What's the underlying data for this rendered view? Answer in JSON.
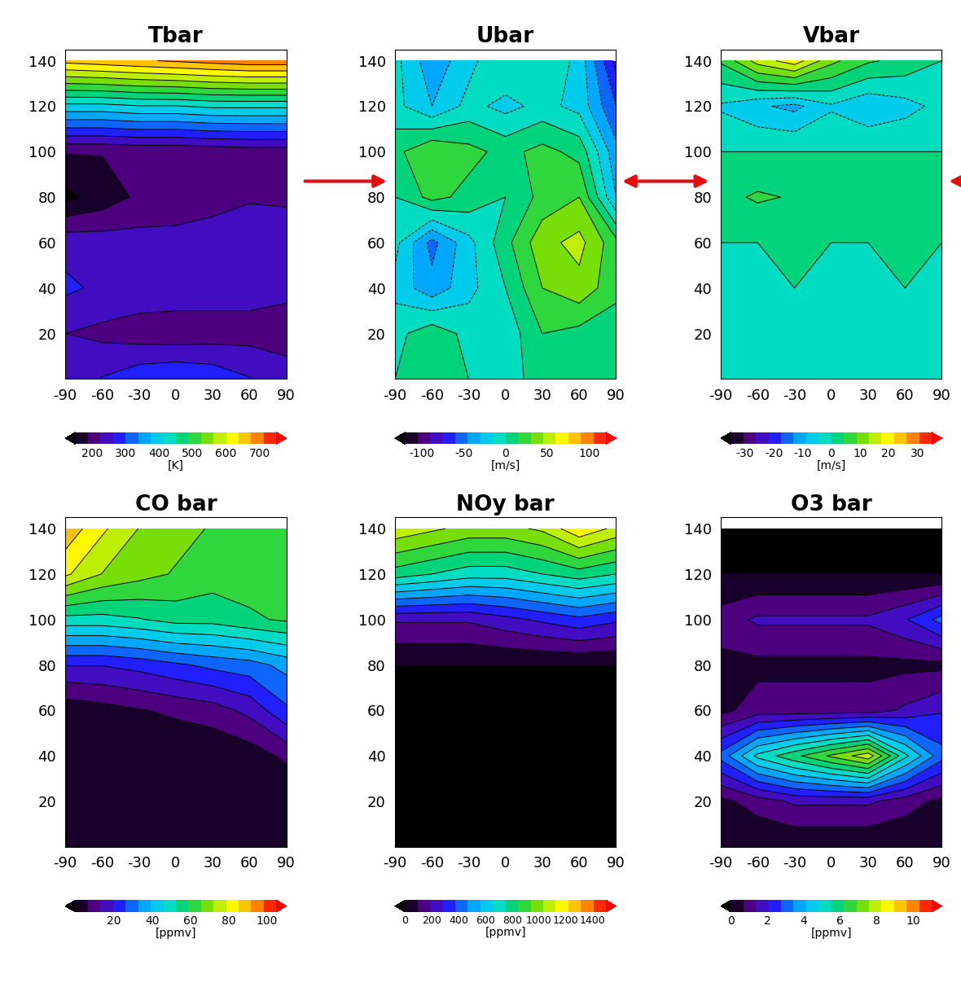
{
  "chart_data": [
    {
      "type": "contour",
      "title": "Tbar",
      "x": [
        -90,
        -60,
        -30,
        0,
        30,
        60,
        90
      ],
      "y": [
        0,
        20,
        40,
        60,
        80,
        100,
        120,
        140
      ],
      "cells": [
        [
          240,
          265,
          290,
          300,
          290,
          265,
          245
        ],
        [
          225,
          215,
          205,
          200,
          205,
          210,
          205
        ],
        [
          270,
          255,
          250,
          250,
          245,
          240,
          235
        ],
        [
          250,
          245,
          240,
          240,
          245,
          255,
          260
        ],
        [
          140,
          165,
          195,
          200,
          210,
          220,
          215
        ],
        [
          190,
          190,
          195,
          195,
          200,
          205,
          205
        ],
        [
          400,
          400,
          410,
          410,
          420,
          420,
          420
        ],
        [
          650,
          660,
          670,
          680,
          690,
          700,
          700
        ]
      ],
      "xlim": [
        -90,
        90
      ],
      "ylim": [
        0,
        145
      ],
      "xticks": [
        -90,
        -60,
        -30,
        0,
        30,
        60,
        90
      ],
      "yticks": [
        20,
        40,
        60,
        80,
        100,
        120,
        140
      ],
      "color_range": [
        150,
        750
      ],
      "color_ticks": [
        200,
        300,
        400,
        500,
        600,
        700
      ],
      "color_label": "[K]"
    },
    {
      "type": "contour",
      "title": "Ubar",
      "x": [
        -90,
        -60,
        -30,
        0,
        30,
        60,
        90
      ],
      "y": [
        0,
        20,
        40,
        60,
        80,
        100,
        120,
        140
      ],
      "cells": [
        [
          0,
          5,
          0,
          -5,
          5,
          5,
          0
        ],
        [
          -5,
          10,
          -5,
          -10,
          15,
          10,
          5
        ],
        [
          -20,
          -40,
          -20,
          0,
          30,
          40,
          20
        ],
        [
          -10,
          -50,
          -20,
          10,
          40,
          50,
          20
        ],
        [
          0,
          20,
          10,
          0,
          20,
          30,
          -30
        ],
        [
          10,
          30,
          20,
          10,
          20,
          10,
          -40
        ],
        [
          -10,
          -30,
          -10,
          -20,
          -10,
          -20,
          -60
        ],
        [
          -10,
          -40,
          -20,
          0,
          0,
          -20,
          -80
        ]
      ],
      "xlim": [
        -90,
        90
      ],
      "ylim": [
        0,
        145
      ],
      "xticks": [
        -90,
        -60,
        -30,
        0,
        30,
        60,
        90
      ],
      "yticks": [
        20,
        40,
        60,
        80,
        100,
        120,
        140
      ],
      "color_range": [
        -120,
        120
      ],
      "color_ticks": [
        -100,
        -50,
        0,
        50,
        100
      ],
      "color_label": "[m/s]"
    },
    {
      "type": "contour",
      "title": "Vbar",
      "x": [
        -90,
        -60,
        -30,
        0,
        30,
        60,
        90
      ],
      "y": [
        0,
        20,
        40,
        60,
        80,
        100,
        120,
        140
      ],
      "cells": [
        [
          0,
          0,
          0,
          0,
          0,
          0,
          0
        ],
        [
          0,
          0,
          0,
          0,
          0,
          0,
          0
        ],
        [
          0,
          0,
          0,
          0,
          0,
          0,
          0
        ],
        [
          0,
          0,
          1,
          0,
          0,
          1,
          0
        ],
        [
          3,
          5,
          4,
          3,
          4,
          4,
          3
        ],
        [
          0,
          0,
          0,
          0,
          0,
          0,
          0
        ],
        [
          -5,
          -8,
          -10,
          -5,
          -8,
          -6,
          -3
        ],
        [
          5,
          15,
          20,
          10,
          5,
          3,
          0
        ]
      ],
      "xlim": [
        -90,
        90
      ],
      "ylim": [
        0,
        145
      ],
      "xticks": [
        -90,
        -60,
        -30,
        0,
        30,
        60,
        90
      ],
      "yticks": [
        20,
        40,
        60,
        80,
        100,
        120,
        140
      ],
      "color_range": [
        -35,
        35
      ],
      "color_ticks": [
        -30,
        -20,
        -10,
        0,
        10,
        20,
        30
      ],
      "color_label": "[m/s]"
    },
    {
      "type": "contour",
      "title": "CO bar",
      "x": [
        -90,
        -60,
        -30,
        0,
        30,
        60,
        90
      ],
      "y": [
        0,
        20,
        40,
        60,
        80,
        100,
        120,
        140
      ],
      "cells": [
        [
          0.1,
          0.1,
          0.1,
          0.1,
          0.1,
          0.1,
          0.1
        ],
        [
          0.1,
          0.1,
          0.1,
          0.1,
          0.1,
          0.1,
          0.2
        ],
        [
          0.2,
          0.3,
          0.4,
          0.5,
          1,
          3,
          8
        ],
        [
          2,
          4,
          6,
          8,
          10,
          15,
          25
        ],
        [
          20,
          20,
          22,
          25,
          28,
          30,
          35
        ],
        [
          50,
          50,
          52,
          55,
          55,
          58,
          60
        ],
        [
          80,
          72,
          68,
          65,
          62,
          62,
          62
        ],
        [
          90,
          80,
          72,
          68,
          65,
          64,
          64
        ]
      ],
      "xlim": [
        -90,
        90
      ],
      "ylim": [
        0,
        145
      ],
      "xticks": [
        -90,
        -60,
        -30,
        0,
        30,
        60,
        90
      ],
      "yticks": [
        20,
        40,
        60,
        80,
        100,
        120,
        140
      ],
      "color_range": [
        0,
        105
      ],
      "color_ticks": [
        20,
        40,
        60,
        80,
        100
      ],
      "color_label": "[ppmv]"
    },
    {
      "type": "contour",
      "title": "NOy bar",
      "x": [
        -90,
        -60,
        -30,
        0,
        30,
        60,
        90
      ],
      "y": [
        0,
        20,
        40,
        60,
        80,
        100,
        120,
        140
      ],
      "cells": [
        [
          0,
          0,
          0,
          0,
          0,
          0,
          0
        ],
        [
          0,
          0,
          0,
          0,
          0,
          0,
          0
        ],
        [
          0,
          0,
          0,
          0,
          0,
          0,
          0
        ],
        [
          0,
          0,
          0,
          0,
          0,
          0,
          0
        ],
        [
          0,
          0,
          0,
          0,
          0,
          0,
          0
        ],
        [
          200,
          200,
          200,
          250,
          300,
          350,
          300
        ],
        [
          800,
          750,
          700,
          700,
          750,
          800,
          750
        ],
        [
          1100,
          1050,
          1000,
          1000,
          1050,
          1200,
          1100
        ]
      ],
      "xlim": [
        -90,
        90
      ],
      "ylim": [
        0,
        145
      ],
      "xticks": [
        -90,
        -60,
        -30,
        0,
        30,
        60,
        90
      ],
      "yticks": [
        20,
        40,
        60,
        80,
        100,
        120,
        140
      ],
      "color_range": [
        0,
        1500
      ],
      "color_ticks": [
        0,
        200,
        400,
        600,
        800,
        1000,
        1200,
        1400
      ],
      "color_label": "[ppmv]"
    },
    {
      "type": "contour",
      "title": "O3 bar",
      "x": [
        -90,
        -60,
        -30,
        0,
        30,
        60,
        90
      ],
      "y": [
        0,
        20,
        40,
        60,
        80,
        100,
        120,
        140
      ],
      "cells": [
        [
          0.05,
          0.05,
          0.05,
          0.05,
          0.05,
          0.05,
          0.05
        ],
        [
          0.5,
          1,
          1.5,
          1.5,
          1.5,
          1,
          0.5
        ],
        [
          3,
          5,
          6,
          7,
          8,
          5,
          3
        ],
        [
          0.5,
          1,
          1,
          1,
          1,
          1.5,
          2
        ],
        [
          0.5,
          0.5,
          0.5,
          0.5,
          0.5,
          0.5,
          0.5
        ],
        [
          1,
          1.5,
          1.5,
          1.5,
          1.5,
          2,
          3
        ],
        [
          0,
          0,
          0,
          0,
          0,
          0,
          0
        ],
        [
          0,
          0,
          0,
          0,
          0,
          0,
          0
        ]
      ],
      "xlim": [
        -90,
        90
      ],
      "ylim": [
        0,
        145
      ],
      "xticks": [
        -90,
        -60,
        -30,
        0,
        30,
        60,
        90
      ],
      "yticks": [
        20,
        40,
        60,
        80,
        100,
        120,
        140
      ],
      "color_range": [
        0,
        11
      ],
      "color_ticks": [
        0,
        2,
        4,
        6,
        8,
        10
      ],
      "color_label": "[ppmv]"
    }
  ]
}
